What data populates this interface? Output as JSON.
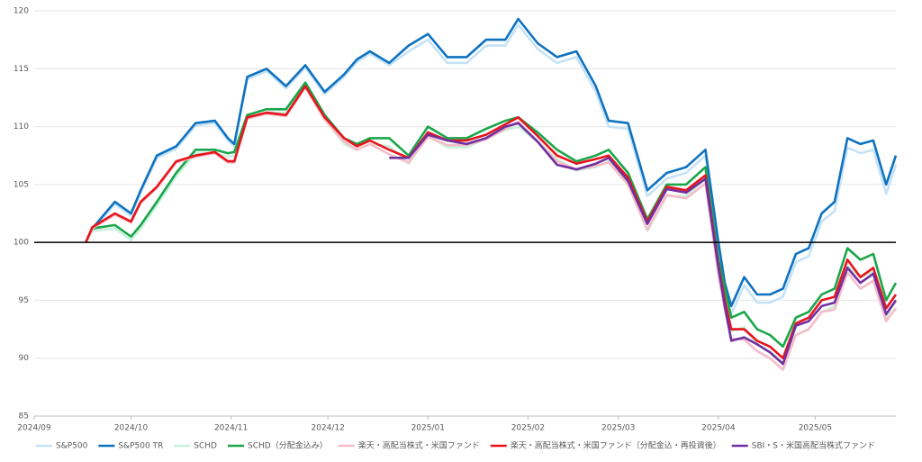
{
  "chart_data": {
    "type": "line",
    "x": [
      16,
      18,
      25,
      30,
      33,
      38,
      44,
      50,
      56,
      60,
      62,
      66,
      72,
      78,
      84,
      90,
      96,
      100,
      104,
      110,
      116,
      122,
      128,
      134,
      140,
      146,
      150,
      156,
      162,
      168,
      174,
      178,
      184,
      190,
      196,
      202,
      208,
      212,
      214,
      216,
      220,
      224,
      228,
      232,
      236,
      240,
      244,
      248,
      252,
      256,
      260,
      264,
      267
    ],
    "xlim": [
      0,
      267
    ],
    "xticks": [
      {
        "value": 0,
        "label": "2024/09"
      },
      {
        "value": 30,
        "label": "2024/10"
      },
      {
        "value": 61,
        "label": "2024/11"
      },
      {
        "value": 91,
        "label": "2024/12"
      },
      {
        "value": 122,
        "label": "2025/01"
      },
      {
        "value": 153,
        "label": "2025/02"
      },
      {
        "value": 181,
        "label": "2025/03"
      },
      {
        "value": 212,
        "label": "2025/04"
      },
      {
        "value": 242,
        "label": "2025/05"
      }
    ],
    "ylim": [
      85,
      120
    ],
    "yticks": [
      85,
      90,
      95,
      100,
      105,
      110,
      115,
      120
    ],
    "grid": true,
    "hline": 100,
    "legend": "bottom",
    "series": [
      {
        "name": "S&P500",
        "color": "#c5e2f6",
        "values": [
          100,
          101,
          103.3,
          102.3,
          104.3,
          107.3,
          108.1,
          110.1,
          110.3,
          108.8,
          108.3,
          114.1,
          114.8,
          113.3,
          115.1,
          112.8,
          114.3,
          115.6,
          116.3,
          115.3,
          116.5,
          117.5,
          115.5,
          115.5,
          117,
          117,
          118.8,
          116.7,
          115.5,
          116,
          113,
          110,
          109.8,
          104,
          105.5,
          106,
          107.5,
          99.3,
          95.8,
          93.8,
          96.3,
          94.8,
          94.8,
          95.3,
          98.3,
          98.8,
          101.8,
          102.7,
          108.2,
          107.7,
          108,
          104.2,
          106.7
        ]
      },
      {
        "name": "S&P500 TR",
        "color": "#0f72c0",
        "values": [
          100,
          101.2,
          103.5,
          102.5,
          104.5,
          107.5,
          108.3,
          110.3,
          110.5,
          109,
          108.5,
          114.3,
          115,
          113.5,
          115.3,
          113,
          114.5,
          115.8,
          116.5,
          115.5,
          117,
          118,
          116,
          116,
          117.5,
          117.5,
          119.3,
          117.2,
          116,
          116.5,
          113.5,
          110.5,
          110.3,
          104.5,
          106,
          106.5,
          108,
          100,
          96.5,
          94.5,
          97,
          95.5,
          95.5,
          96,
          99,
          99.5,
          102.5,
          103.5,
          109,
          108.5,
          108.8,
          105,
          107.5
        ]
      },
      {
        "name": "SCHD",
        "color": "#c8f2dc",
        "values": [
          100,
          101,
          101.2,
          100.2,
          101.2,
          103.2,
          105.7,
          107.7,
          107.7,
          107.4,
          107.5,
          110.7,
          111.2,
          111.2,
          113.5,
          110.7,
          108.5,
          108,
          108.5,
          108.3,
          106.8,
          109.2,
          108.2,
          108.2,
          109,
          109.7,
          110,
          108.7,
          107.2,
          106.2,
          106.5,
          107,
          105,
          101,
          104,
          104,
          105.5,
          97.3,
          94.8,
          92.3,
          92.7,
          91.2,
          90.6,
          89.6,
          92,
          92.5,
          94,
          94.5,
          98,
          97,
          97.5,
          93.5,
          95
        ]
      },
      {
        "name": "SCHD（分配金込み）",
        "color": "#1aa64a",
        "values": [
          100,
          101.2,
          101.5,
          100.5,
          101.5,
          103.5,
          106,
          108,
          108,
          107.7,
          107.8,
          111,
          111.5,
          111.5,
          113.8,
          111,
          109,
          108.5,
          109,
          109,
          107.5,
          110,
          109,
          109,
          109.8,
          110.5,
          110.8,
          109.5,
          108,
          107,
          107.5,
          108,
          106,
          102,
          105,
          105,
          106.5,
          98.5,
          96,
          93.5,
          94,
          92.5,
          92,
          91,
          93.5,
          94,
          95.5,
          96,
          99.5,
          98.5,
          99,
          95,
          96.5
        ]
      },
      {
        "name": "楽天・高配当株式・米国ファンド",
        "color": "#f6bcc7",
        "values": [
          100,
          101.2,
          102.4,
          101.7,
          103.4,
          104.7,
          106.9,
          107.4,
          107.7,
          106.9,
          106.9,
          110.7,
          111.1,
          110.9,
          113.4,
          110.6,
          108.7,
          108,
          108.5,
          107.6,
          106.9,
          109.1,
          108.4,
          108.4,
          108.9,
          109.8,
          110.4,
          108.7,
          107,
          106.3,
          106.6,
          106.9,
          105,
          101.1,
          104.1,
          103.8,
          105.1,
          97.2,
          94.2,
          91.7,
          91.6,
          90.6,
          90,
          89,
          92,
          92.5,
          94,
          94.2,
          97.4,
          96,
          96.7,
          93.2,
          94.3
        ]
      },
      {
        "name": "楽天・高配当株式・米国ファンド（分配金込・再投資後）",
        "color": "#e8141c",
        "values": [
          100,
          101.3,
          102.5,
          101.8,
          103.5,
          104.8,
          107,
          107.5,
          107.8,
          107,
          107,
          110.8,
          111.2,
          111,
          113.5,
          110.8,
          109,
          108.3,
          108.8,
          108,
          107.3,
          109.5,
          108.8,
          108.8,
          109.3,
          110.2,
          110.8,
          109.2,
          107.5,
          106.8,
          107.2,
          107.5,
          105.6,
          101.8,
          104.8,
          104.5,
          105.8,
          98,
          95,
          92.5,
          92.5,
          91.5,
          91,
          90,
          93,
          93.5,
          95,
          95.3,
          98.5,
          97,
          97.8,
          94.3,
          95.5
        ]
      },
      {
        "name": "SBI・S・米国高配当株式ファンド",
        "color": "#7030a0",
        "values": [
          null,
          null,
          null,
          null,
          null,
          null,
          null,
          null,
          null,
          null,
          null,
          null,
          null,
          null,
          null,
          null,
          null,
          null,
          null,
          107.3,
          107.3,
          109.3,
          108.8,
          108.5,
          109,
          110,
          110.3,
          108.7,
          106.7,
          106.3,
          106.8,
          107.3,
          105.3,
          101.6,
          104.6,
          104.3,
          105.5,
          97.8,
          94.5,
          91.5,
          91.8,
          91.2,
          90.5,
          89.5,
          92.8,
          93.2,
          94.5,
          94.8,
          97.8,
          96.5,
          97.3,
          93.8,
          95
        ]
      }
    ]
  }
}
